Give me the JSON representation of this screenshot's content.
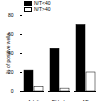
{
  "chart_data": {
    "type": "bar",
    "categories": [
      "Adult",
      "Elderly",
      "AD"
    ],
    "series": [
      {
        "name": "N/T<40",
        "color": "#000000",
        "values": [
          22,
          45,
          70
        ]
      },
      {
        "name": "N/T>40",
        "color": "#ffffff",
        "values": [
          5,
          3,
          20
        ]
      }
    ],
    "y_label": "% of positive wells",
    "ylim": [
      0,
      80
    ],
    "yticks": [
      0,
      20,
      40,
      60,
      80
    ]
  }
}
